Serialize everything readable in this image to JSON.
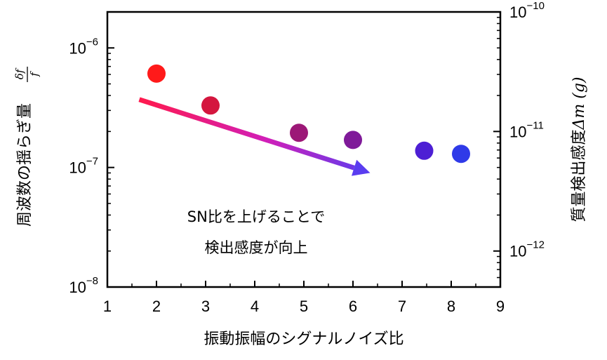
{
  "chart_data": {
    "type": "scatter",
    "xlabel": "振動振幅のシグナルノイズ比",
    "ylabel_left_text": "周波数の揺らぎ量",
    "ylabel_left_frac_num": "δf",
    "ylabel_left_frac_den": "f",
    "ylabel_right_text": "質量検出感度",
    "ylabel_right_math": "Δm",
    "ylabel_right_unit": " (g)",
    "xlim": [
      1,
      9
    ],
    "xticks": [
      "1",
      "2",
      "3",
      "4",
      "5",
      "6",
      "7",
      "8",
      "9"
    ],
    "ylim_left": [
      1e-08,
      1e-06
    ],
    "ylim_left_display": [
      1e-08,
      2e-06
    ],
    "yscale": "log",
    "yticks_left": [
      {
        "base": "10",
        "exp": "−6",
        "value": 1e-06
      },
      {
        "base": "10",
        "exp": "−7",
        "value": 1e-07
      },
      {
        "base": "10",
        "exp": "−8",
        "value": 1e-08
      }
    ],
    "ylim_right": [
      5e-13,
      1e-10
    ],
    "yticks_right": [
      {
        "base": "10",
        "exp": "−10",
        "value": 1e-10
      },
      {
        "base": "10",
        "exp": "−11",
        "value": 1e-11
      },
      {
        "base": "10",
        "exp": "−12",
        "value": 1e-12
      }
    ],
    "points": [
      {
        "x": 2.0,
        "y": 6.1e-07,
        "color": "#ff1a1a"
      },
      {
        "x": 3.1,
        "y": 3.3e-07,
        "color": "#d4163e"
      },
      {
        "x": 4.9,
        "y": 1.95e-07,
        "color": "#9c1877"
      },
      {
        "x": 6.0,
        "y": 1.7e-07,
        "color": "#7f1a99"
      },
      {
        "x": 7.45,
        "y": 1.38e-07,
        "color": "#4d1fd4"
      },
      {
        "x": 8.2,
        "y": 1.3e-07,
        "color": "#2f3ae8"
      }
    ],
    "trend_arrow": {
      "x_start": 1.65,
      "y_start": 3.7e-07,
      "x_end": 6.35,
      "y_end": 9e-08,
      "color_start": "#ff1a4d",
      "color_mid": "#d11fb8",
      "color_end": "#5a3df0"
    },
    "annotations": [
      "SN比を上げることで",
      "検出感度が向上"
    ],
    "grid": false,
    "legend": "none"
  }
}
